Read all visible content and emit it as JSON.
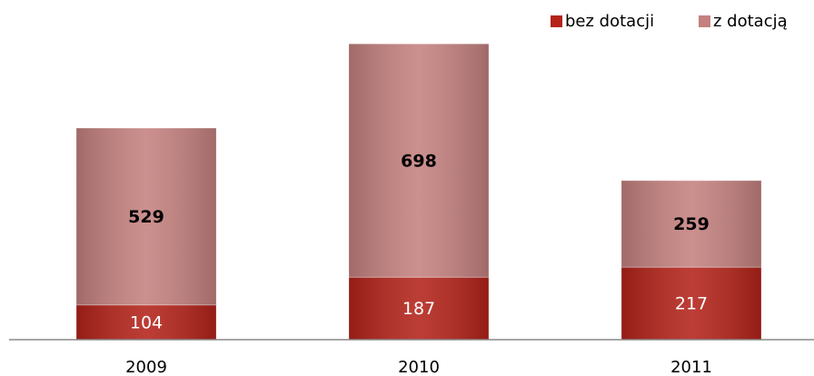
{
  "chart_data": {
    "type": "stacked_bar",
    "categories": [
      "2009",
      "2010",
      "2011"
    ],
    "series": [
      {
        "name": "bez dotacji",
        "color": "#b3231a",
        "values": [
          104,
          187,
          217
        ]
      },
      {
        "name": "z dotacją",
        "color": "#c4817f",
        "values": [
          529,
          698,
          259
        ]
      }
    ],
    "ylim": [
      0,
      1000
    ],
    "legend": "top-right"
  }
}
